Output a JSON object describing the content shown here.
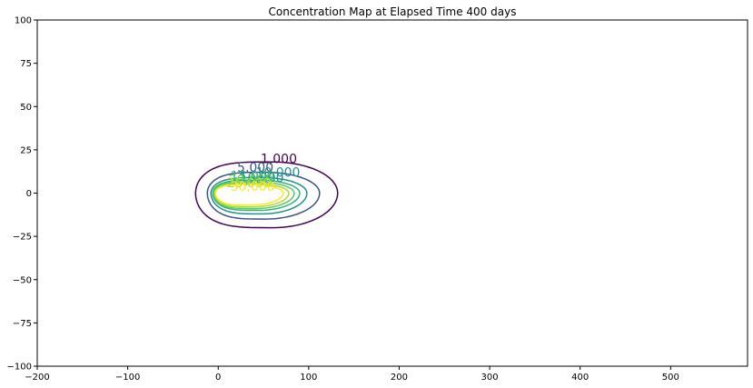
{
  "chart_data": {
    "type": "contour",
    "title": "Concentration Map at Elapsed Time 400 days",
    "xlabel": "",
    "ylabel": "",
    "xlim": [
      -200,
      585
    ],
    "ylim": [
      -100,
      100
    ],
    "x_ticks": [
      -200,
      -100,
      0,
      100,
      200,
      300,
      400,
      500
    ],
    "y_ticks": [
      -100,
      -75,
      -50,
      -25,
      0,
      25,
      50,
      75,
      100
    ],
    "x_tick_labels": [
      "−200",
      "−100",
      "0",
      "100",
      "200",
      "300",
      "400",
      "500"
    ],
    "y_tick_labels": [
      "−100",
      "−75",
      "−50",
      "−25",
      "0",
      "25",
      "50",
      "75",
      "100"
    ],
    "grid": false,
    "colormap": "viridis",
    "levels": [
      {
        "value": 1000,
        "label": "1,000",
        "color": "#440154",
        "x_min": -25,
        "x_max": 132,
        "y_min": -20,
        "y_max": 18,
        "center_x": 60
      },
      {
        "value": 5000,
        "label": "5,000",
        "color": "#3b528b",
        "x_min": -12,
        "x_max": 112,
        "y_min": -15,
        "y_max": 12,
        "center_x": 52
      },
      {
        "value": 10000,
        "label": "10,000",
        "color": "#21918c",
        "x_min": -8,
        "x_max": 98,
        "y_min": -12,
        "y_max": 9,
        "center_x": 48
      },
      {
        "value": 15000,
        "label": "15,000",
        "color": "#2fb47c",
        "x_min": -6,
        "x_max": 90,
        "y_min": -10,
        "y_max": 7.5,
        "center_x": 44
      },
      {
        "value": 20000,
        "label": "20,000",
        "color": "#5ec962",
        "x_min": -5,
        "x_max": 84,
        "y_min": -9,
        "y_max": 6.5,
        "center_x": 40
      },
      {
        "value": 25000,
        "label": "25,000",
        "color": "#addc30",
        "x_min": -4,
        "x_max": 78,
        "y_min": -8,
        "y_max": 5.5,
        "center_x": 37
      },
      {
        "value": 30000,
        "label": "30,000",
        "color": "#fde725",
        "x_min": -3,
        "x_max": 72,
        "y_min": -7,
        "y_max": 5,
        "center_x": 34
      }
    ],
    "label_positions": [
      {
        "text": "1,000",
        "x": 67,
        "y": 20,
        "color": "#440154"
      },
      {
        "text": "5,000",
        "x": 41,
        "y": 15,
        "color": "#3b528b"
      },
      {
        "text": "10,000",
        "x": 66,
        "y": 12,
        "color": "#21918c"
      },
      {
        "text": "10,000",
        "x": 48,
        "y": 9,
        "color": "#21918c"
      },
      {
        "text": "15,000",
        "x": 38,
        "y": 10,
        "color": "#2fb47c"
      },
      {
        "text": "20,000",
        "x": 36,
        "y": 8,
        "color": "#5ec962"
      },
      {
        "text": "25,000",
        "x": 34,
        "y": 6,
        "color": "#addc30"
      },
      {
        "text": "30,000",
        "x": 38,
        "y": 4,
        "color": "#fde725"
      }
    ]
  }
}
